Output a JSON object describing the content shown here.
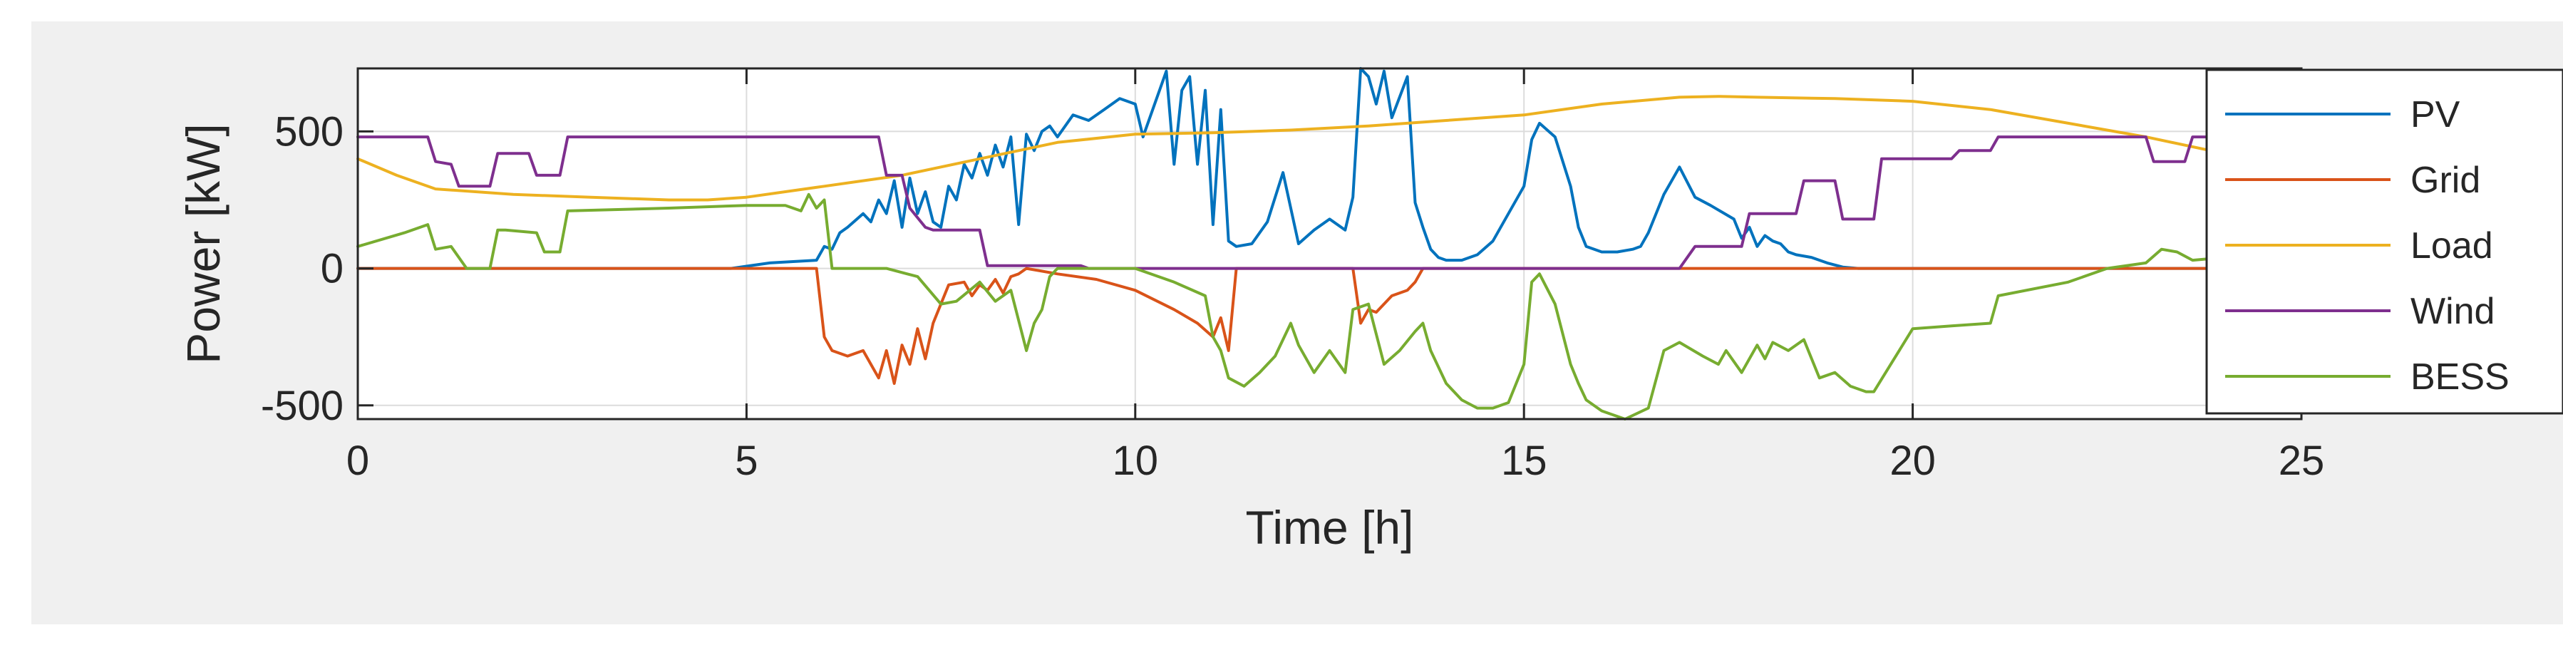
{
  "chart_data": {
    "type": "line",
    "title": "",
    "xlabel": "Time [h]",
    "ylabel": "Power [kW]",
    "xlim": [
      0,
      25
    ],
    "ylim": [
      -550,
      730
    ],
    "xticks": [
      0,
      5,
      10,
      15,
      20,
      25
    ],
    "yticks": [
      -500,
      0,
      500
    ],
    "grid": true,
    "legend_position": "right",
    "series": [
      {
        "name": "PV",
        "color": "#0072BD",
        "x": [
          0,
          4.8,
          5.3,
          5.6,
          5.9,
          6.0,
          6.1,
          6.2,
          6.3,
          6.5,
          6.6,
          6.7,
          6.8,
          6.9,
          7.0,
          7.1,
          7.2,
          7.3,
          7.4,
          7.5,
          7.6,
          7.7,
          7.8,
          7.9,
          8.0,
          8.1,
          8.2,
          8.3,
          8.4,
          8.5,
          8.6,
          8.7,
          8.8,
          8.9,
          9.0,
          9.2,
          9.4,
          9.6,
          9.8,
          10.0,
          10.1,
          10.3,
          10.4,
          10.5,
          10.6,
          10.7,
          10.8,
          10.9,
          11.0,
          11.1,
          11.2,
          11.3,
          11.5,
          11.7,
          11.9,
          12.1,
          12.3,
          12.5,
          12.7,
          12.8,
          12.9,
          13.0,
          13.1,
          13.2,
          13.3,
          13.5,
          13.6,
          13.7,
          13.8,
          13.9,
          14.0,
          14.2,
          14.4,
          14.6,
          14.8,
          15.0,
          15.1,
          15.2,
          15.4,
          15.6,
          15.7,
          15.8,
          16.0,
          16.2,
          16.4,
          16.5,
          16.6,
          16.8,
          17.0,
          17.2,
          17.4,
          17.7,
          17.8,
          17.9,
          18.0,
          18.1,
          18.2,
          18.3,
          18.4,
          18.5,
          18.7,
          18.9,
          19.1,
          19.3,
          19.5,
          20.0,
          22.0,
          23.5,
          24.0
        ],
        "values": [
          0,
          0,
          20,
          25,
          30,
          80,
          70,
          130,
          150,
          200,
          170,
          250,
          200,
          320,
          150,
          330,
          200,
          280,
          170,
          150,
          300,
          250,
          380,
          330,
          420,
          340,
          450,
          370,
          480,
          160,
          490,
          430,
          500,
          520,
          480,
          560,
          540,
          580,
          620,
          600,
          480,
          640,
          720,
          380,
          650,
          700,
          380,
          650,
          160,
          580,
          100,
          80,
          90,
          170,
          350,
          90,
          140,
          180,
          140,
          260,
          730,
          700,
          600,
          720,
          550,
          700,
          240,
          150,
          70,
          40,
          30,
          30,
          50,
          100,
          200,
          300,
          470,
          530,
          480,
          300,
          150,
          80,
          60,
          60,
          70,
          80,
          130,
          270,
          370,
          260,
          230,
          180,
          110,
          150,
          80,
          120,
          100,
          90,
          60,
          50,
          40,
          20,
          5,
          0,
          0,
          0,
          0,
          0,
          0
        ]
      },
      {
        "name": "Grid",
        "color": "#D95319",
        "x": [
          0,
          5.9,
          6.0,
          6.1,
          6.2,
          6.3,
          6.5,
          6.6,
          6.7,
          6.8,
          6.9,
          7.0,
          7.1,
          7.2,
          7.3,
          7.4,
          7.5,
          7.6,
          7.8,
          7.9,
          8.0,
          8.1,
          8.2,
          8.3,
          8.4,
          8.5,
          8.6,
          9.0,
          9.5,
          10.0,
          10.5,
          10.8,
          11.0,
          11.1,
          11.2,
          11.3,
          12.0,
          12.8,
          12.9,
          13.0,
          13.1,
          13.3,
          13.5,
          13.6,
          13.7,
          14.0,
          25.0
        ],
        "values": [
          0,
          0,
          -250,
          -300,
          -310,
          -320,
          -300,
          -350,
          -400,
          -300,
          -420,
          -280,
          -350,
          -220,
          -330,
          -200,
          -130,
          -60,
          -50,
          -100,
          -60,
          -80,
          -40,
          -90,
          -30,
          -20,
          0,
          -20,
          -40,
          -80,
          -150,
          -200,
          -250,
          -180,
          -300,
          0,
          0,
          0,
          -200,
          -150,
          -160,
          -100,
          -80,
          -50,
          0,
          0,
          0
        ]
      },
      {
        "name": "Load",
        "color": "#EDB120",
        "x": [
          0,
          0.5,
          1,
          2,
          3,
          4,
          4.5,
          5,
          6,
          7,
          8,
          9,
          10,
          11,
          12,
          13,
          14,
          15,
          16,
          17,
          17.5,
          18,
          19,
          20,
          21,
          22,
          23,
          24
        ],
        "values": [
          400,
          340,
          290,
          270,
          260,
          250,
          250,
          260,
          300,
          340,
          400,
          460,
          490,
          495,
          505,
          520,
          540,
          560,
          600,
          625,
          628,
          625,
          620,
          610,
          580,
          530,
          480,
          420
        ]
      },
      {
        "name": "Wind",
        "color": "#7E2F8E",
        "x": [
          0,
          0.9,
          1.0,
          1.2,
          1.3,
          1.7,
          1.8,
          2.2,
          2.3,
          2.6,
          2.7,
          6.7,
          6.8,
          7.0,
          7.1,
          7.3,
          7.4,
          8.0,
          8.1,
          9.3,
          9.4,
          17.0,
          17.2,
          17.8,
          17.9,
          18.5,
          18.6,
          19.0,
          19.1,
          19.5,
          19.6,
          20.5,
          20.6,
          21.0,
          21.1,
          23.0,
          23.1,
          23.5,
          23.6,
          24.0
        ],
        "values": [
          480,
          480,
          390,
          380,
          300,
          300,
          420,
          420,
          340,
          340,
          480,
          480,
          340,
          340,
          220,
          150,
          140,
          140,
          10,
          10,
          0,
          0,
          80,
          80,
          200,
          200,
          320,
          320,
          180,
          180,
          400,
          400,
          430,
          430,
          480,
          480,
          390,
          390,
          480,
          480
        ]
      },
      {
        "name": "BESS",
        "color": "#77AC30",
        "x": [
          0,
          0.6,
          0.9,
          1.0,
          1.2,
          1.4,
          1.7,
          1.8,
          1.9,
          2.3,
          2.4,
          2.6,
          2.7,
          4.0,
          5.0,
          5.5,
          5.7,
          5.8,
          5.9,
          6.0,
          6.1,
          6.8,
          7.2,
          7.5,
          7.7,
          8.0,
          8.2,
          8.4,
          8.6,
          8.7,
          8.8,
          8.9,
          9.0,
          9.5,
          10.0,
          10.5,
          10.9,
          11.0,
          11.1,
          11.2,
          11.4,
          11.6,
          11.8,
          12.0,
          12.1,
          12.3,
          12.5,
          12.7,
          12.8,
          13.0,
          13.2,
          13.4,
          13.6,
          13.7,
          13.8,
          14.0,
          14.2,
          14.4,
          14.6,
          14.8,
          15.0,
          15.1,
          15.2,
          15.4,
          15.6,
          15.7,
          15.8,
          16.0,
          16.3,
          16.6,
          16.8,
          17.0,
          17.3,
          17.5,
          17.6,
          17.8,
          17.9,
          18.0,
          18.1,
          18.2,
          18.4,
          18.6,
          18.8,
          19.0,
          19.2,
          19.4,
          19.5,
          20.0,
          20.5,
          21.0,
          21.1,
          22.0,
          22.5,
          23.0,
          23.2,
          23.4,
          23.6,
          24.0
        ],
        "values": [
          80,
          130,
          160,
          70,
          80,
          0,
          0,
          140,
          140,
          130,
          60,
          60,
          210,
          220,
          230,
          230,
          210,
          270,
          220,
          250,
          0,
          0,
          -30,
          -130,
          -120,
          -50,
          -120,
          -80,
          -300,
          -200,
          -150,
          -30,
          0,
          0,
          0,
          -50,
          -100,
          -250,
          -300,
          -400,
          -430,
          -380,
          -320,
          -200,
          -280,
          -380,
          -300,
          -380,
          -150,
          -130,
          -350,
          -300,
          -230,
          -200,
          -300,
          -420,
          -480,
          -510,
          -510,
          -490,
          -350,
          -50,
          -20,
          -130,
          -350,
          -420,
          -480,
          -520,
          -550,
          -510,
          -300,
          -270,
          -320,
          -350,
          -300,
          -380,
          -330,
          -280,
          -330,
          -270,
          -300,
          -260,
          -400,
          -380,
          -430,
          -450,
          -450,
          -220,
          -210,
          -200,
          -100,
          -50,
          0,
          20,
          70,
          60,
          30,
          40
        ]
      }
    ]
  }
}
